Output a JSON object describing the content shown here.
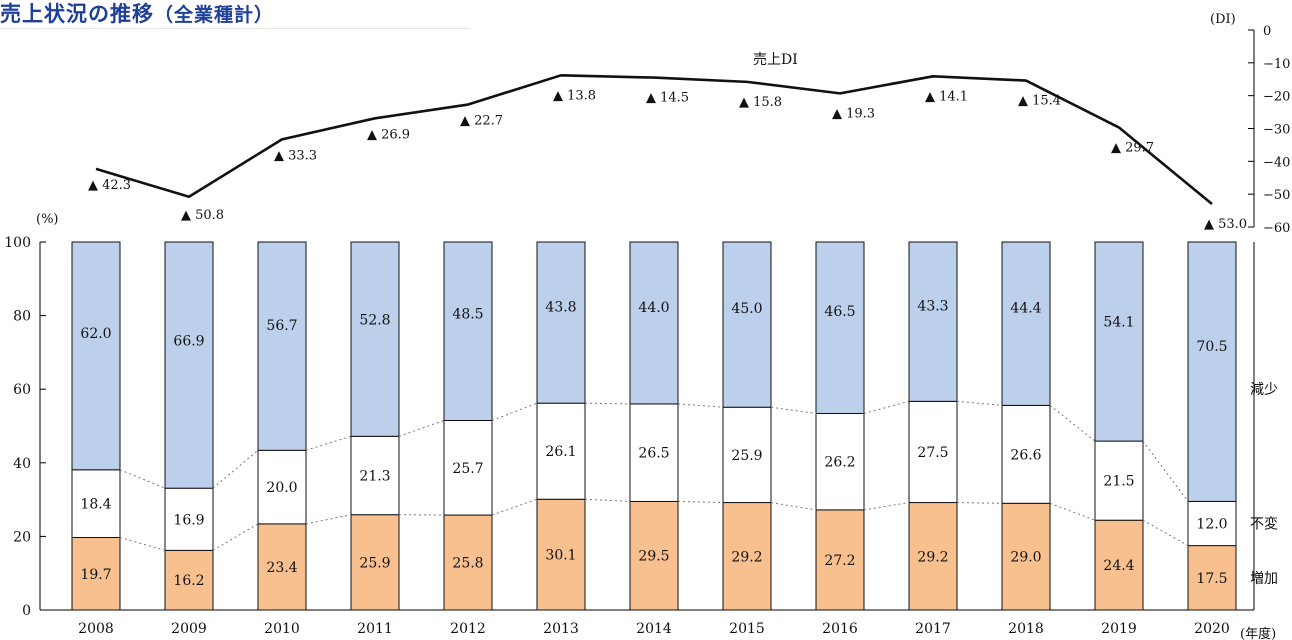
{
  "title": "売上状況の推移",
  "subtitle": "（全業種計）",
  "chart_data": [
    {
      "type": "line",
      "ylabel": "(DI)",
      "ylim": [
        -60,
        0
      ],
      "yticks": [
        "0",
        "−10",
        "−20",
        "−30",
        "−40",
        "−50",
        "−60"
      ],
      "series": [
        {
          "name": "売上DI",
          "x": [
            "2008",
            "2009",
            "2010",
            "2011",
            "2012",
            "2013",
            "2014",
            "2015",
            "2016",
            "2017",
            "2018",
            "2019",
            "2020"
          ],
          "values": [
            -42.3,
            -50.8,
            -33.3,
            -26.9,
            -22.7,
            -13.8,
            -14.5,
            -15.8,
            -19.3,
            -14.1,
            -15.4,
            -29.7,
            -53.0
          ],
          "labels": [
            "▲ 42.3",
            "▲ 50.8",
            "▲ 33.3",
            "▲ 26.9",
            "▲ 22.7",
            "▲ 13.8",
            "▲ 14.5",
            "▲ 15.8",
            "▲ 19.3",
            "▲ 14.1",
            "▲ 15.4",
            "▲ 29.7",
            "▲ 53.0"
          ]
        }
      ]
    },
    {
      "type": "bar",
      "stacked": true,
      "ylabel": "(%)",
      "xlabel": "(年度)",
      "ylim": [
        0,
        100
      ],
      "yticks": [
        "0",
        "20",
        "40",
        "60",
        "80",
        "100"
      ],
      "categories": [
        "2008",
        "2009",
        "2010",
        "2011",
        "2012",
        "2013",
        "2014",
        "2015",
        "2016",
        "2017",
        "2018",
        "2019",
        "2020"
      ],
      "series": [
        {
          "name": "増加",
          "color": "#f7c08e",
          "values": [
            19.7,
            16.2,
            23.4,
            25.9,
            25.8,
            30.1,
            29.5,
            29.2,
            27.2,
            29.2,
            29.0,
            24.4,
            17.5
          ],
          "labels": [
            "19.7",
            "16.2",
            "23.4",
            "25.9",
            "25.8",
            "30.1",
            "29.5",
            "29.2",
            "27.2",
            "29.2",
            "29.0",
            "24.4",
            "17.5"
          ]
        },
        {
          "name": "不変",
          "color": "#ffffff",
          "values": [
            18.4,
            16.9,
            20.0,
            21.3,
            25.7,
            26.1,
            26.5,
            25.9,
            26.2,
            27.5,
            26.6,
            21.5,
            12.0
          ],
          "labels": [
            "18.4",
            "16.9",
            "20.0",
            "21.3",
            "25.7",
            "26.1",
            "26.5",
            "25.9",
            "26.2",
            "27.5",
            "26.6",
            "21.5",
            "12.0"
          ]
        },
        {
          "name": "減少",
          "color": "#bcd0ec",
          "values": [
            62.0,
            66.9,
            56.7,
            52.8,
            48.5,
            43.8,
            44.0,
            45.0,
            46.5,
            43.3,
            44.4,
            54.1,
            70.5
          ],
          "labels": [
            "62.0",
            "66.9",
            "56.7",
            "52.8",
            "48.5",
            "43.8",
            "44.0",
            "45.0",
            "46.5",
            "43.3",
            "44.4",
            "54.1",
            "70.5"
          ]
        }
      ]
    }
  ]
}
